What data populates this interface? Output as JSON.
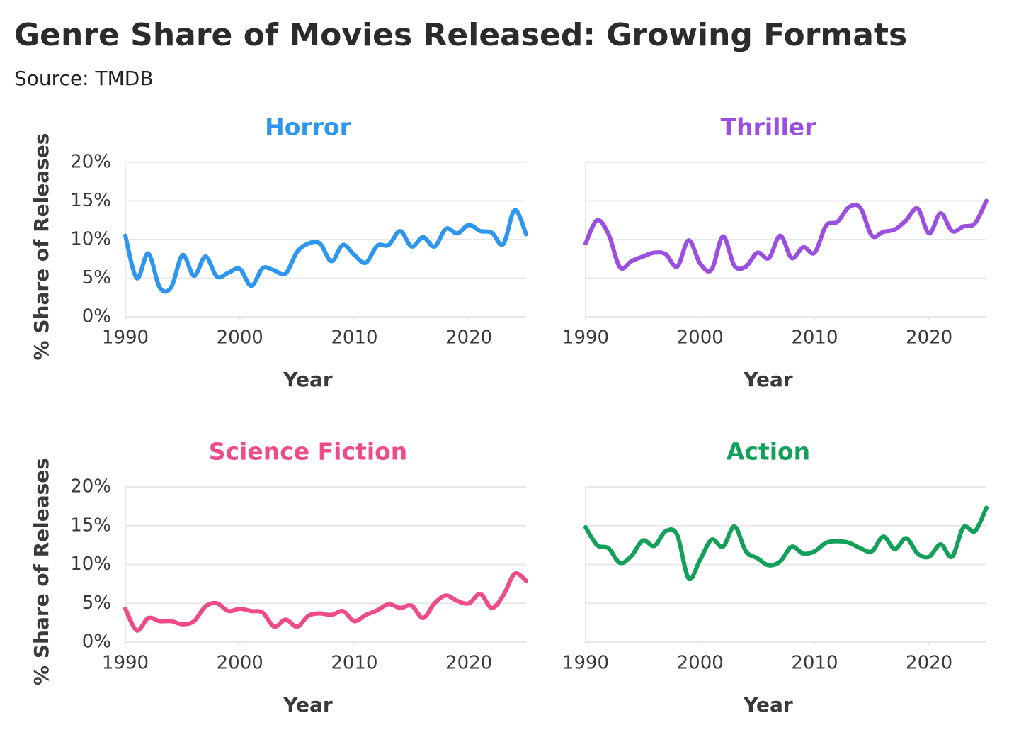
{
  "title": "Genre Share of Movies Released: Growing Formats",
  "subtitle": "Source: TMDB",
  "chart_data": [
    {
      "type": "line",
      "title": "Horror",
      "color": "#2f96f0",
      "xlabel": "Year",
      "ylabel": "% Share of Releases",
      "x": [
        1990,
        1991,
        1992,
        1993,
        1994,
        1995,
        1996,
        1997,
        1998,
        1999,
        2000,
        2001,
        2002,
        2003,
        2004,
        2005,
        2006,
        2007,
        2008,
        2009,
        2010,
        2011,
        2012,
        2013,
        2014,
        2015,
        2016,
        2017,
        2018,
        2019,
        2020,
        2021,
        2022,
        2023,
        2024,
        2025
      ],
      "values": [
        10.5,
        5.0,
        8.2,
        3.8,
        3.8,
        8.0,
        5.3,
        7.8,
        5.2,
        5.7,
        6.2,
        4.0,
        6.3,
        6.0,
        5.6,
        8.4,
        9.5,
        9.5,
        7.2,
        9.3,
        8.0,
        7.0,
        9.2,
        9.3,
        11.1,
        9.1,
        10.3,
        9.1,
        11.4,
        10.8,
        11.9,
        11.1,
        10.9,
        9.4,
        13.8,
        10.7
      ],
      "xlim": [
        1990,
        2025
      ],
      "xticks": [
        1990,
        2000,
        2010,
        2020
      ],
      "ylim": [
        0,
        20
      ],
      "yticks": [
        {
          "value": 0,
          "label": "0%"
        },
        {
          "value": 5,
          "label": "5%"
        },
        {
          "value": 10,
          "label": "10%"
        },
        {
          "value": 15,
          "label": "15%"
        },
        {
          "value": 20,
          "label": "20%"
        }
      ],
      "grid": true
    },
    {
      "type": "line",
      "title": "Thriller",
      "color": "#9b4fe0",
      "xlabel": "Year",
      "x": [
        1990,
        1991,
        1992,
        1993,
        1994,
        1995,
        1996,
        1997,
        1998,
        1999,
        2000,
        2001,
        2002,
        2003,
        2004,
        2005,
        2006,
        2007,
        2008,
        2009,
        2010,
        2011,
        2012,
        2013,
        2014,
        2015,
        2016,
        2017,
        2018,
        2019,
        2020,
        2021,
        2022,
        2023,
        2024,
        2025
      ],
      "values": [
        9.5,
        12.5,
        10.7,
        6.4,
        7.2,
        7.8,
        8.3,
        8.1,
        6.5,
        9.9,
        6.9,
        6.1,
        10.4,
        6.6,
        6.5,
        8.3,
        7.6,
        10.5,
        7.6,
        9.0,
        8.3,
        11.8,
        12.3,
        14.2,
        14.1,
        10.5,
        11.0,
        11.3,
        12.5,
        14.0,
        10.8,
        13.4,
        11.1,
        11.7,
        12.1,
        15.0
      ],
      "xlim": [
        1990,
        2025
      ],
      "xticks": [
        1990,
        2000,
        2010,
        2020
      ],
      "ylim": [
        0,
        20
      ],
      "yticks": [
        0,
        5,
        10,
        15,
        20
      ],
      "ytick_labels": false,
      "grid": true
    },
    {
      "type": "line",
      "title": "Science Fiction",
      "color": "#ee4b8a",
      "xlabel": "Year",
      "ylabel": "% Share of Releases",
      "x": [
        1990,
        1991,
        1992,
        1993,
        1994,
        1995,
        1996,
        1997,
        1998,
        1999,
        2000,
        2001,
        2002,
        2003,
        2004,
        2005,
        2006,
        2007,
        2008,
        2009,
        2010,
        2011,
        2012,
        2013,
        2014,
        2015,
        2016,
        2017,
        2018,
        2019,
        2020,
        2021,
        2022,
        2023,
        2024,
        2025
      ],
      "values": [
        4.3,
        1.5,
        3.1,
        2.7,
        2.7,
        2.3,
        2.7,
        4.6,
        5.0,
        4.0,
        4.3,
        4.0,
        3.8,
        2.0,
        2.9,
        2.0,
        3.4,
        3.7,
        3.5,
        4.0,
        2.7,
        3.5,
        4.1,
        4.9,
        4.4,
        4.7,
        3.1,
        5.0,
        6.0,
        5.3,
        5.0,
        6.2,
        4.4,
        6.0,
        8.8,
        7.9
      ],
      "xlim": [
        1990,
        2025
      ],
      "xticks": [
        1990,
        2000,
        2010,
        2020
      ],
      "ylim": [
        0,
        20
      ],
      "yticks": [
        {
          "value": 0,
          "label": "0%"
        },
        {
          "value": 5,
          "label": "5%"
        },
        {
          "value": 10,
          "label": "10%"
        },
        {
          "value": 15,
          "label": "15%"
        },
        {
          "value": 20,
          "label": "20%"
        }
      ],
      "grid": true
    },
    {
      "type": "line",
      "title": "Action",
      "color": "#12a05a",
      "xlabel": "Year",
      "x": [
        1990,
        1991,
        1992,
        1993,
        1994,
        1995,
        1996,
        1997,
        1998,
        1999,
        2000,
        2001,
        2002,
        2003,
        2004,
        2005,
        2006,
        2007,
        2008,
        2009,
        2010,
        2011,
        2012,
        2013,
        2014,
        2015,
        2016,
        2017,
        2018,
        2019,
        2020,
        2021,
        2022,
        2023,
        2024,
        2025
      ],
      "values": [
        14.8,
        12.5,
        12.1,
        10.2,
        11.1,
        13.1,
        12.4,
        14.3,
        13.8,
        8.2,
        10.6,
        13.2,
        12.3,
        14.9,
        11.7,
        10.8,
        9.9,
        10.4,
        12.3,
        11.4,
        11.7,
        12.8,
        13.0,
        12.8,
        12.1,
        11.7,
        13.6,
        12.0,
        13.4,
        11.4,
        11.0,
        12.6,
        11.0,
        14.8,
        14.3,
        17.3
      ],
      "xlim": [
        1990,
        2025
      ],
      "xticks": [
        1990,
        2000,
        2010,
        2020
      ],
      "ylim": [
        0,
        20
      ],
      "yticks": [
        0,
        5,
        10,
        15,
        20
      ],
      "ytick_labels": false,
      "grid": true
    }
  ]
}
